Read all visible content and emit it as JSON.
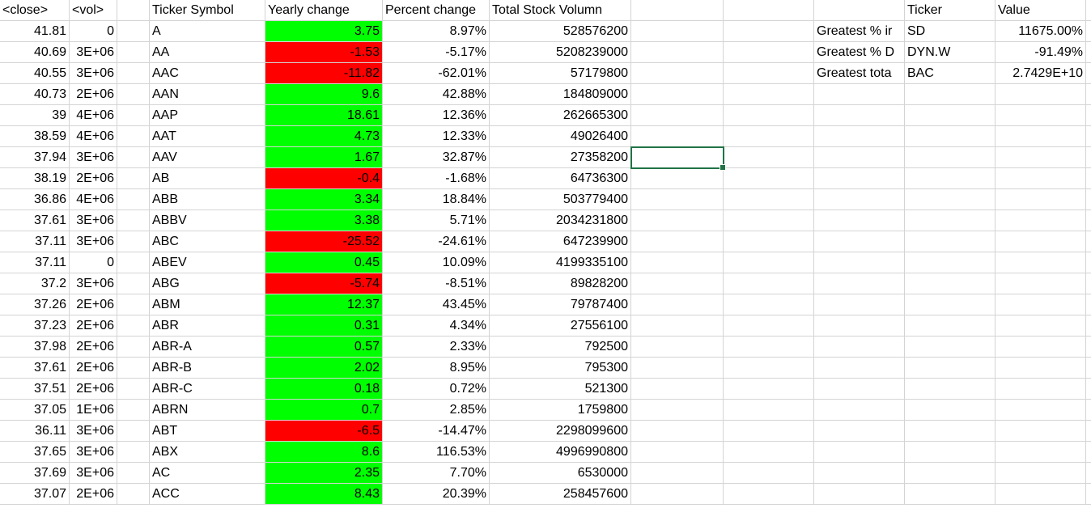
{
  "headers": {
    "close": "<close>",
    "vol": "<vol>",
    "ticker_symbol": "Ticker Symbol",
    "yearly_change": "Yearly change",
    "percent_change": "Percent change",
    "total_volume": "Total Stock Volumn",
    "summary_ticker": "Ticker",
    "summary_value": "Value"
  },
  "rows": [
    {
      "close": "41.81",
      "vol": "0",
      "ticker": "A",
      "change": "3.75",
      "pct": "8.97%",
      "volume": "528576200"
    },
    {
      "close": "40.69",
      "vol": "3E+06",
      "ticker": "AA",
      "change": "-1.53",
      "pct": "-5.17%",
      "volume": "5208239000"
    },
    {
      "close": "40.55",
      "vol": "3E+06",
      "ticker": "AAC",
      "change": "-11.82",
      "pct": "-62.01%",
      "volume": "57179800"
    },
    {
      "close": "40.73",
      "vol": "2E+06",
      "ticker": "AAN",
      "change": "9.6",
      "pct": "42.88%",
      "volume": "184809000"
    },
    {
      "close": "39",
      "vol": "4E+06",
      "ticker": "AAP",
      "change": "18.61",
      "pct": "12.36%",
      "volume": "262665300"
    },
    {
      "close": "38.59",
      "vol": "4E+06",
      "ticker": "AAT",
      "change": "4.73",
      "pct": "12.33%",
      "volume": "49026400"
    },
    {
      "close": "37.94",
      "vol": "3E+06",
      "ticker": "AAV",
      "change": "1.67",
      "pct": "32.87%",
      "volume": "27358200"
    },
    {
      "close": "38.19",
      "vol": "2E+06",
      "ticker": "AB",
      "change": "-0.4",
      "pct": "-1.68%",
      "volume": "64736300"
    },
    {
      "close": "36.86",
      "vol": "4E+06",
      "ticker": "ABB",
      "change": "3.34",
      "pct": "18.84%",
      "volume": "503779400"
    },
    {
      "close": "37.61",
      "vol": "3E+06",
      "ticker": "ABBV",
      "change": "3.38",
      "pct": "5.71%",
      "volume": "2034231800"
    },
    {
      "close": "37.11",
      "vol": "3E+06",
      "ticker": "ABC",
      "change": "-25.52",
      "pct": "-24.61%",
      "volume": "647239900"
    },
    {
      "close": "37.11",
      "vol": "0",
      "ticker": "ABEV",
      "change": "0.45",
      "pct": "10.09%",
      "volume": "4199335100"
    },
    {
      "close": "37.2",
      "vol": "3E+06",
      "ticker": "ABG",
      "change": "-5.74",
      "pct": "-8.51%",
      "volume": "89828200"
    },
    {
      "close": "37.26",
      "vol": "2E+06",
      "ticker": "ABM",
      "change": "12.37",
      "pct": "43.45%",
      "volume": "79787400"
    },
    {
      "close": "37.23",
      "vol": "2E+06",
      "ticker": "ABR",
      "change": "0.31",
      "pct": "4.34%",
      "volume": "27556100"
    },
    {
      "close": "37.98",
      "vol": "2E+06",
      "ticker": "ABR-A",
      "change": "0.57",
      "pct": "2.33%",
      "volume": "792500"
    },
    {
      "close": "37.61",
      "vol": "2E+06",
      "ticker": "ABR-B",
      "change": "2.02",
      "pct": "8.95%",
      "volume": "795300"
    },
    {
      "close": "37.51",
      "vol": "2E+06",
      "ticker": "ABR-C",
      "change": "0.18",
      "pct": "0.72%",
      "volume": "521300"
    },
    {
      "close": "37.05",
      "vol": "1E+06",
      "ticker": "ABRN",
      "change": "0.7",
      "pct": "2.85%",
      "volume": "1759800"
    },
    {
      "close": "36.11",
      "vol": "3E+06",
      "ticker": "ABT",
      "change": "-6.5",
      "pct": "-14.47%",
      "volume": "2298099600"
    },
    {
      "close": "37.65",
      "vol": "3E+06",
      "ticker": "ABX",
      "change": "8.6",
      "pct": "116.53%",
      "volume": "4996990800"
    },
    {
      "close": "37.69",
      "vol": "3E+06",
      "ticker": "AC",
      "change": "2.35",
      "pct": "7.70%",
      "volume": "6530000"
    },
    {
      "close": "37.07",
      "vol": "2E+06",
      "ticker": "ACC",
      "change": "8.43",
      "pct": "20.39%",
      "volume": "258457600"
    }
  ],
  "summary": [
    {
      "label": "Greatest % ir",
      "ticker": "SD",
      "value": "11675.00%"
    },
    {
      "label": "Greatest % D",
      "ticker": "DYN.W",
      "value": "-91.49%"
    },
    {
      "label": "Greatest tota",
      "ticker": "BAC",
      "value": "2.7429E+10"
    }
  ],
  "colors": {
    "positive_fill": "#00ff00",
    "negative_fill": "#ff0000",
    "gridline": "#d4d4d4",
    "selection": "#217346"
  }
}
